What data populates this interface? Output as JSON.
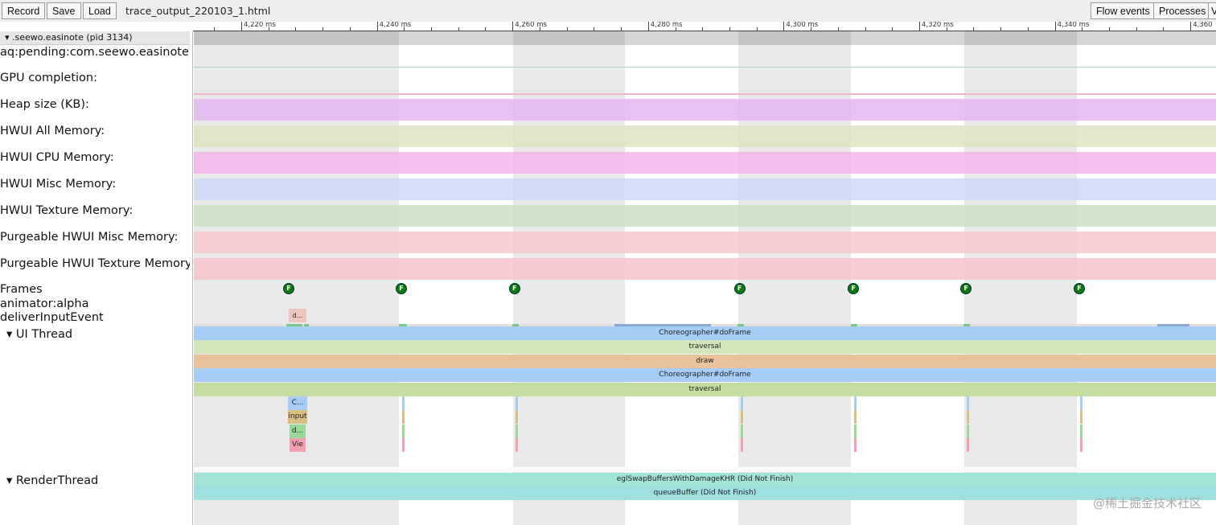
{
  "toolbar": {
    "record": "Record",
    "save": "Save",
    "load": "Load",
    "filename": "trace_output_220103_1.html",
    "flow_events": "Flow events",
    "processes": "Processes",
    "view_truncated": "V"
  },
  "timeline": {
    "unit": "ms",
    "start_ms": 4213,
    "tick_labels": [
      "4,220 ms",
      "4,240 ms",
      "4,260 ms",
      "4,280 ms",
      "4,300 ms",
      "4,320 ms",
      "4,340 ms",
      "4,360 ms"
    ],
    "tick_values": [
      4220,
      4240,
      4260,
      4280,
      4300,
      4320,
      4340,
      4360
    ]
  },
  "process": {
    "label": "▾ .seewo.easinote (pid 3134)"
  },
  "tracks": [
    {
      "label": "aq:pending:com.seewo.easinote",
      "color": "#9fd9c9"
    },
    {
      "label": "GPU completion:",
      "color": "#f7b6c8"
    },
    {
      "label": "Heap size (KB):",
      "color": "#e3b6f0"
    },
    {
      "label": "HWUI All Memory:",
      "color": "#dfe3c3"
    },
    {
      "label": "HWUI CPU Memory:",
      "color": "#f3b5ea"
    },
    {
      "label": "HWUI Misc Memory:",
      "color": "#cdd8f7"
    },
    {
      "label": "HWUI Texture Memory:",
      "color": "#cbe1c2"
    },
    {
      "label": "Purgeable HWUI Misc Memory:",
      "color": "#f8c8cf"
    },
    {
      "label": "Purgeable HWUI Texture Memory:",
      "color": "#f6c3cb"
    }
  ],
  "frames": {
    "label": "Frames",
    "marker": "F",
    "times_ms": [
      4227,
      4243.6,
      4260.3,
      4293.5,
      4310.3,
      4326.9,
      4343.6
    ]
  },
  "animator": {
    "label": "animator:alpha"
  },
  "deliver": {
    "label": "deliverInputEvent",
    "slice": "d..."
  },
  "shaded_bands_ms": [
    [
      4213,
      4243.2
    ],
    [
      4260.1,
      4276.6
    ],
    [
      4293.3,
      4309.9
    ],
    [
      4326.6,
      4343.2
    ]
  ],
  "ui_thread": {
    "label": "▾  UI Thread",
    "slices": [
      {
        "name": "Choreographer#doFrame",
        "color": "#a6cdf6"
      },
      {
        "name": "traversal",
        "color": "#d2e6bc"
      },
      {
        "name": "draw",
        "color": "#e8c29a"
      },
      {
        "name": "Choreographer#doFrame",
        "color": "#a6cdf6"
      },
      {
        "name": "traversal",
        "color": "#c3dea0"
      }
    ],
    "small_slices": [
      {
        "name": "C...",
        "color": "#a6cdf6"
      },
      {
        "name": "input",
        "color": "#d8bf82"
      },
      {
        "name": "d...",
        "color": "#9ad89a"
      },
      {
        "name": "Vie",
        "color": "#f5a0b0"
      }
    ]
  },
  "render_thread": {
    "label": "▾  RenderThread",
    "slices": [
      {
        "name": "eglSwapBuffersWithDamageKHR (Did Not Finish)",
        "color": "#a4e3d8"
      },
      {
        "name": "queueBuffer (Did Not Finish)",
        "color": "#9edfe0"
      }
    ]
  },
  "watermark": "@稀土掘金技术社区"
}
